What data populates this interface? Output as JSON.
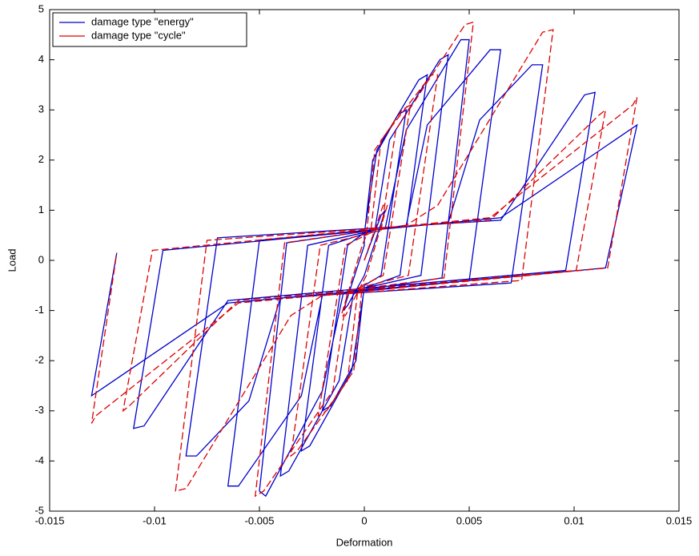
{
  "chart_data": {
    "type": "line",
    "xlabel": "Deformation",
    "ylabel": "Load",
    "xlim": [
      -0.015,
      0.015
    ],
    "xticks": [
      -0.015,
      -0.01,
      -0.005,
      0,
      0.005,
      0.01,
      0.015
    ],
    "ylim": [
      -5,
      5
    ],
    "yticks": [
      -5,
      -4,
      -3,
      -2,
      -1,
      0,
      1,
      2,
      3,
      4,
      5
    ],
    "grid": false,
    "legend": "upper left",
    "series": [
      {
        "name": "damage type \"energy\"",
        "color": "#0000cc",
        "dashed": false,
        "x": [
          0,
          0.0008,
          0.001,
          0,
          -0.0008,
          -0.001,
          0,
          0,
          0.0004,
          0.0016,
          0.002,
          0.0008,
          0,
          -0.0004,
          -0.0016,
          -0.002,
          -0.0008,
          0,
          0.0006,
          0.0026,
          0.003,
          0.0017,
          0,
          -0.0006,
          -0.0026,
          -0.003,
          -0.0017,
          0.0005,
          0.0012,
          0.0036,
          0.004,
          0.0027,
          -0.0005,
          -0.0012,
          -0.0036,
          -0.004,
          -0.0027,
          0.001,
          0.002,
          0.0046,
          0.005,
          0.0037,
          -0.001,
          -0.002,
          -0.0047,
          -0.005,
          -0.0037,
          0.002,
          0.003,
          0.006,
          0.0065,
          0.005,
          -0.002,
          -0.003,
          -0.006,
          -0.0065,
          -0.005,
          0.004,
          0.0055,
          0.008,
          0.0085,
          0.007,
          -0.004,
          -0.0055,
          -0.008,
          -0.0085,
          -0.007,
          0.0065,
          0.0105,
          0.011,
          0.0096,
          -0.0065,
          -0.0105,
          -0.011,
          -0.0096,
          0.0065,
          0.013,
          0.0115,
          -0.0065,
          -0.013,
          -0.0118
        ],
        "values": [
          0,
          0.9,
          1,
          -0.3,
          -0.9,
          -1,
          0.3,
          0.5,
          2,
          2.9,
          3,
          -0.3,
          -0.5,
          -2,
          -2.9,
          -3,
          0.3,
          0.55,
          2.2,
          3.6,
          3.7,
          -0.3,
          -0.55,
          -2.2,
          -3.7,
          -3.8,
          0.3,
          0.6,
          2.4,
          4,
          4.1,
          -0.3,
          -0.6,
          -2.4,
          -4.2,
          -4.3,
          0.3,
          0.65,
          2.6,
          4.4,
          4.4,
          -0.35,
          -0.65,
          -2.6,
          -4.7,
          -4.6,
          0.35,
          0.7,
          2.7,
          4.2,
          4.2,
          -0.4,
          -0.7,
          -2.7,
          -4.5,
          -4.5,
          0.4,
          0.75,
          2.8,
          3.9,
          3.9,
          -0.45,
          -0.75,
          -2.8,
          -3.9,
          -3.9,
          0.45,
          0.8,
          3.3,
          3.35,
          -0.2,
          -0.8,
          -3.3,
          -3.35,
          0.2,
          0.85,
          2.7,
          -0.15,
          -0.85,
          -2.7,
          0.15
        ]
      },
      {
        "name": "damage type \"cycle\"",
        "color": "#dd0000",
        "dashed": true,
        "x": [
          0,
          0.0009,
          0.0011,
          0.0001,
          -0.0009,
          -0.0011,
          -0.0001,
          0.0001,
          0.0005,
          0.0018,
          0.0022,
          0.0009,
          -0.0001,
          -0.0005,
          -0.0018,
          -0.0022,
          -0.0009,
          0.0003,
          0.0008,
          0.0032,
          0.0035,
          0.0021,
          -0.0003,
          -0.0008,
          -0.0032,
          -0.0035,
          -0.0021,
          0.0008,
          0.0015,
          0.0048,
          0.0052,
          0.0038,
          -0.0008,
          -0.0015,
          -0.0048,
          -0.0052,
          -0.0038,
          0.002,
          0.0035,
          0.0085,
          0.009,
          0.0075,
          -0.002,
          -0.0035,
          -0.0085,
          -0.009,
          -0.0075,
          0.006,
          0.0112,
          0.0115,
          0.0101,
          -0.006,
          -0.0112,
          -0.0115,
          -0.0101,
          0.006,
          0.0128,
          0.013,
          0.0116,
          -0.006,
          -0.0128,
          -0.013,
          -0.0118
        ],
        "values": [
          0,
          1.1,
          1.1,
          -0.3,
          -1.1,
          -1.1,
          0.3,
          0.5,
          2.2,
          3,
          3.1,
          -0.3,
          -0.5,
          -2.2,
          -3,
          -3.1,
          0.3,
          0.55,
          2.4,
          3.7,
          3.7,
          -0.3,
          -0.55,
          -2.4,
          -3.8,
          -3.9,
          0.3,
          0.6,
          2.6,
          4.7,
          4.75,
          -0.35,
          -0.6,
          -2.6,
          -4.6,
          -4.7,
          0.35,
          0.7,
          1.1,
          4.55,
          4.6,
          -0.4,
          -0.7,
          -1.1,
          -4.55,
          -4.6,
          0.4,
          0.8,
          2.9,
          3,
          -0.2,
          -0.8,
          -2.9,
          -3,
          0.2,
          0.85,
          3.1,
          3.25,
          -0.15,
          -0.85,
          -3.1,
          -3.25,
          0.15
        ]
      }
    ]
  }
}
